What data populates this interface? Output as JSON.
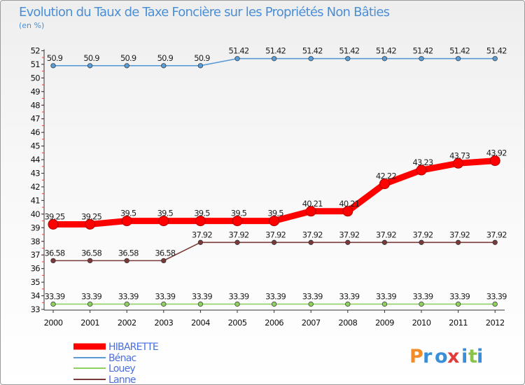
{
  "chart_data": {
    "type": "line",
    "title": "Evolution du Taux de Taxe Foncière sur les Propriétés Non Bâties",
    "ylabel": "(en %)",
    "xlabel": "",
    "ylim": [
      33,
      52
    ],
    "yticks": [
      33,
      34,
      35,
      36,
      37,
      38,
      39,
      40,
      41,
      42,
      43,
      44,
      45,
      46,
      47,
      48,
      49,
      50,
      51,
      52
    ],
    "x": [
      "2000",
      "2001",
      "2002",
      "2003",
      "2004",
      "2005",
      "2006",
      "2007",
      "2008",
      "2009",
      "2010",
      "2011",
      "2012"
    ],
    "series": [
      {
        "name": "HIBARETTE",
        "color": "#ff0000",
        "values": [
          39.25,
          39.25,
          39.5,
          39.5,
          39.5,
          39.5,
          39.5,
          40.21,
          40.21,
          42.22,
          43.23,
          43.73,
          43.92
        ]
      },
      {
        "name": "Bénac",
        "color": "#5b9bd5",
        "values": [
          50.9,
          50.9,
          50.9,
          50.9,
          50.9,
          51.42,
          51.42,
          51.42,
          51.42,
          51.42,
          51.42,
          51.42,
          51.42
        ]
      },
      {
        "name": "Louey",
        "color": "#8fd060",
        "values": [
          33.39,
          33.39,
          33.39,
          33.39,
          33.39,
          33.39,
          33.39,
          33.39,
          33.39,
          33.39,
          33.39,
          33.39,
          33.39
        ]
      },
      {
        "name": "Lanne",
        "color": "#7a3a3a",
        "values": [
          36.58,
          36.58,
          36.58,
          36.58,
          37.92,
          37.92,
          37.92,
          37.92,
          37.92,
          37.92,
          37.92,
          37.92,
          37.92
        ]
      }
    ],
    "grid": false,
    "legend_position": "bottom-left"
  },
  "brand": {
    "letters": [
      "P",
      "r",
      "o",
      "x",
      "i",
      "t",
      "i"
    ],
    "colors": [
      "#f28c28",
      "#3a8fd8",
      "#3a8fd8",
      "#e23b3b",
      "#3a8fd8",
      "#8bc34a",
      "#3a8fd8"
    ]
  }
}
